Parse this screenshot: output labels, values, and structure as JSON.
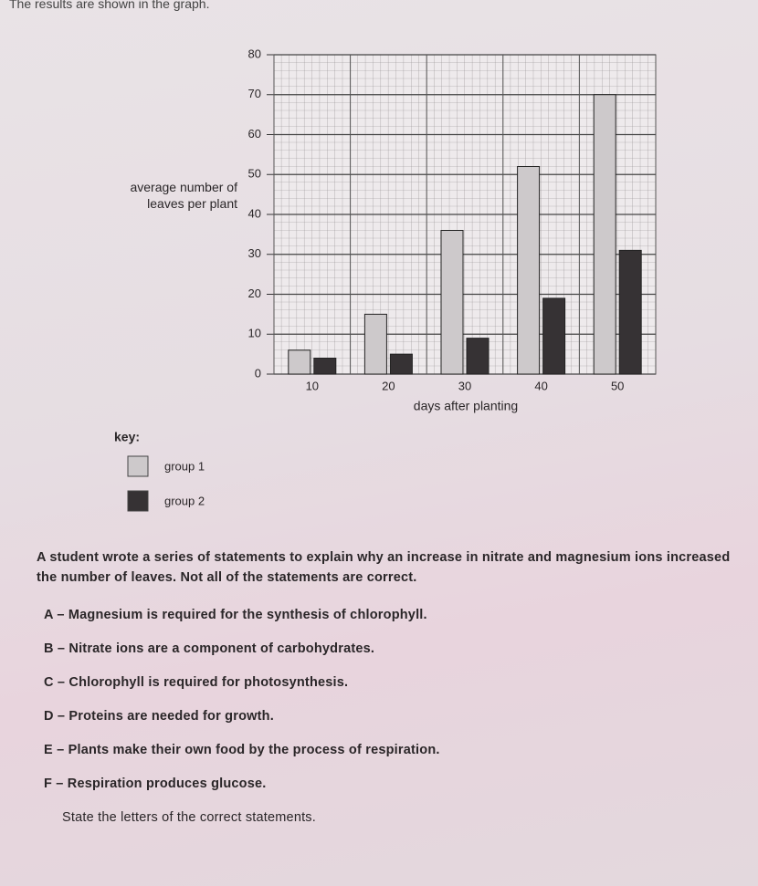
{
  "header": {
    "text": "The results are shown in the graph."
  },
  "chart_data": {
    "type": "bar",
    "y_label": "average number of leaves per plant",
    "x_label": "days after planting",
    "categories": [
      "10",
      "20",
      "30",
      "40",
      "50"
    ],
    "series": [
      {
        "name": "group 1",
        "color": "#cdc9cb",
        "values": [
          6,
          15,
          36,
          52,
          70
        ]
      },
      {
        "name": "group 2",
        "color": "#363234",
        "values": [
          4,
          5,
          9,
          19,
          31
        ]
      }
    ],
    "ylim": [
      0,
      80
    ],
    "yticks": [
      0,
      10,
      20,
      30,
      40,
      50,
      60,
      70,
      80
    ],
    "grid": true,
    "legend_title": "key:"
  },
  "question": {
    "intro": "A student wrote a series of statements to explain why an increase in nitrate and magnesium ions increased the number of leaves. Not all of the statements are correct.",
    "statements": [
      "A – Magnesium is required for the synthesis of chlorophyll.",
      "B – Nitrate ions are a component of carbohydrates.",
      "C – Chlorophyll is required for photosynthesis.",
      "D – Proteins are needed for growth.",
      "E – Plants make their own food by the process of respiration.",
      "F – Respiration produces glucose."
    ],
    "instruction": "State the letters of the correct statements."
  }
}
